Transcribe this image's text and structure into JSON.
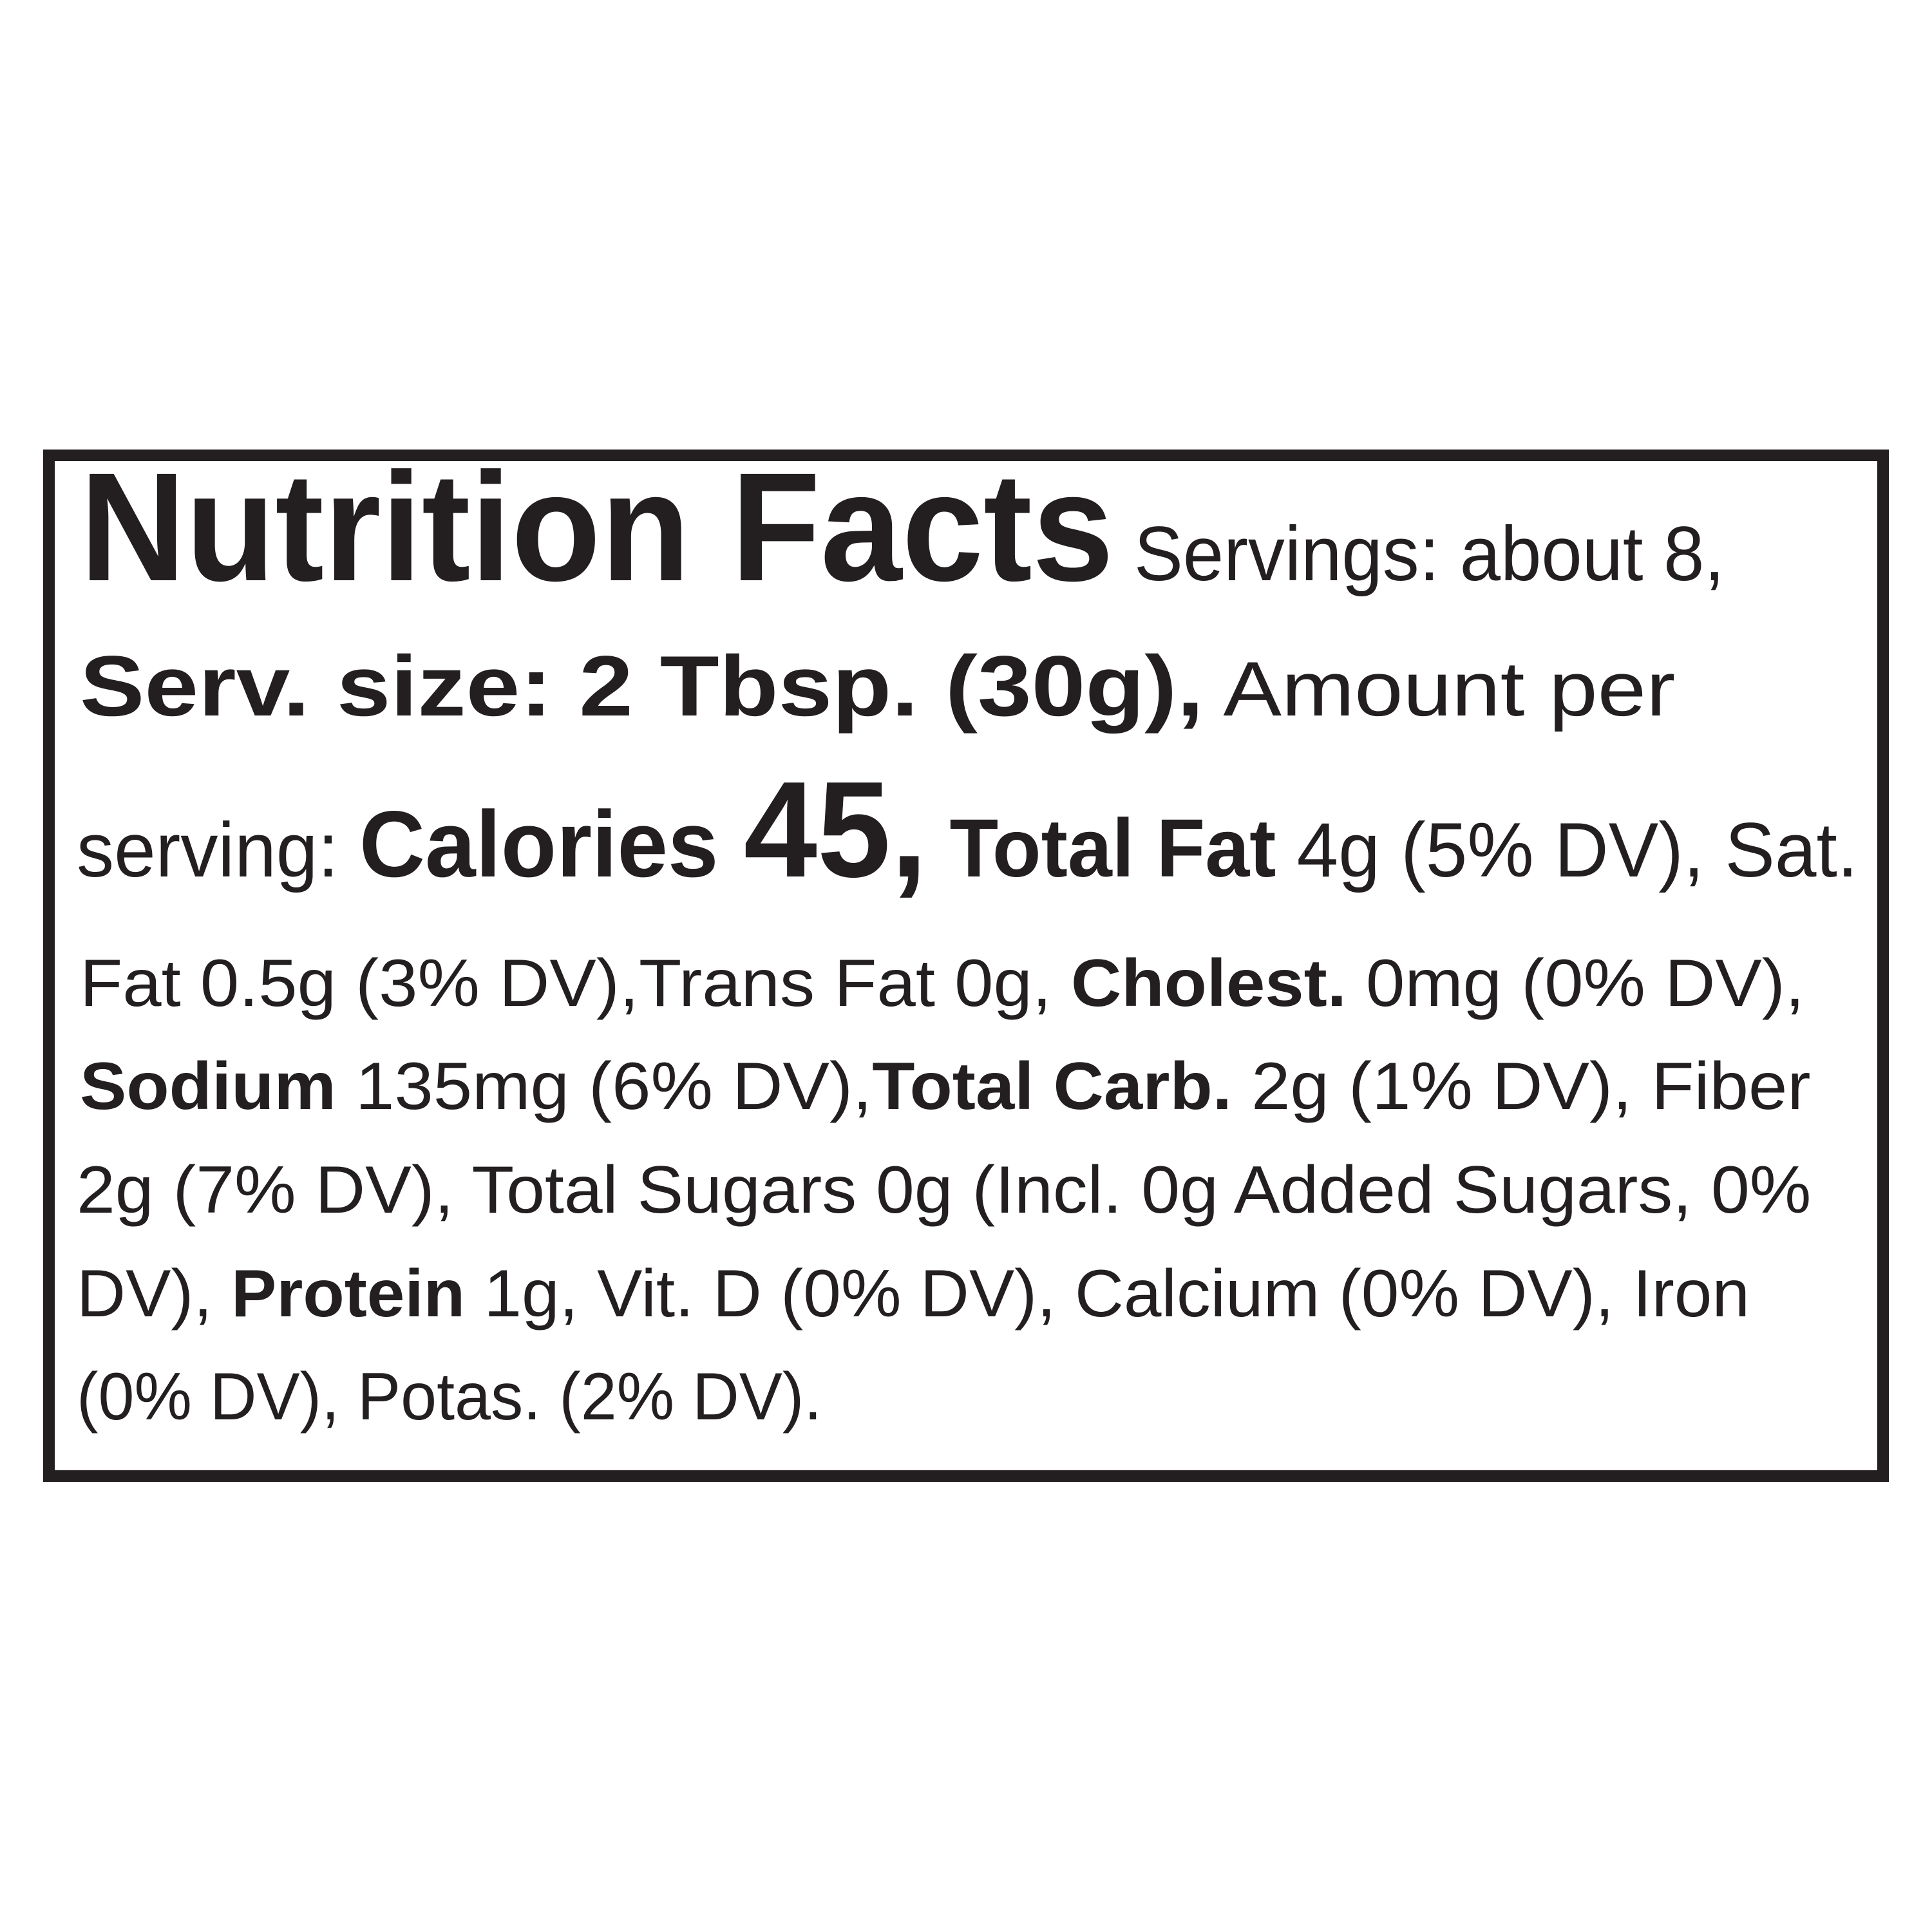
{
  "label": {
    "title": "Nutrition Facts",
    "text_color": "#231f20",
    "lines": [
      [
        {
          "text": "Nutrition Facts",
          "bold": true
        },
        {
          "text": " Servings: about 8,",
          "bold": false
        }
      ],
      [
        {
          "text": "Serv. size: 2 Tbsp. (30g),",
          "bold": true
        },
        {
          "text": " Amount per",
          "bold": false
        }
      ],
      [
        {
          "text": "serving: ",
          "bold": false
        },
        {
          "text": "Calories ",
          "bold": true
        },
        {
          "text": "45,",
          "bold": true
        },
        {
          "text": " Total Fat",
          "bold": true
        },
        {
          "text": " 4g (5% DV), Sat.",
          "bold": false
        }
      ],
      [
        {
          "text": "Fat 0.5g (3% DV),Trans Fat 0g, ",
          "bold": false
        },
        {
          "text": "Cholest.",
          "bold": true
        },
        {
          "text": " 0mg (0% DV),",
          "bold": false
        }
      ],
      [
        {
          "text": "Sodium",
          "bold": true
        },
        {
          "text": " 135mg (6% DV),",
          "bold": false
        },
        {
          "text": "Total Carb.",
          "bold": true
        },
        {
          "text": " 2g (1% DV), Fiber",
          "bold": false
        }
      ],
      [
        {
          "text": "2g (7% DV), Total Sugars 0g (Incl. 0g Added Sugars, 0%",
          "bold": false
        }
      ],
      [
        {
          "text": "DV), ",
          "bold": false
        },
        {
          "text": "Protein",
          "bold": true
        },
        {
          "text": " 1g, Vit. D (0% DV), Calcium (0% DV), Iron",
          "bold": false
        }
      ],
      [
        {
          "text": "(0% DV), Potas. (2% DV).",
          "bold": false
        }
      ]
    ]
  }
}
